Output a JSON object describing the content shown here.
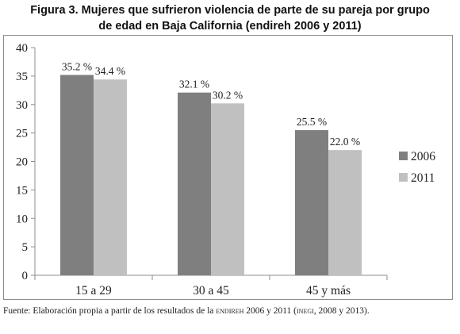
{
  "title": {
    "line1": "Figura 3. Mujeres que sufrieron violencia de parte de su pareja por grupo",
    "line2": "de edad en Baja California (endireh 2006 y 2011)"
  },
  "source": {
    "prefix": "Fuente: Elaboración propia a partir de los resultados de la ",
    "sc1": "endireh",
    "mid": " 2006 y 2011 (",
    "sc2": "inegi",
    "suffix": ", 2008 y 2013)."
  },
  "colors": {
    "s2006": "#7f7f7f",
    "s2011": "#c0c0c0",
    "axis": "#8c8c8c"
  },
  "chart_data": {
    "type": "bar",
    "categories": [
      "15 a 29",
      "30 a 45",
      "45 y más"
    ],
    "series": [
      {
        "name": "2006",
        "values": [
          35.2,
          32.1,
          25.5
        ],
        "labels": [
          "35.2 %",
          "32.1 %",
          "25.5 %"
        ],
        "color": "#7f7f7f"
      },
      {
        "name": "2011",
        "values": [
          34.4,
          30.2,
          22.0
        ],
        "labels": [
          "34.4 %",
          "30.2 %",
          "22.0 %"
        ],
        "color": "#c0c0c0"
      }
    ],
    "ylim": [
      0,
      40
    ],
    "yticks": [
      0,
      5,
      10,
      15,
      20,
      25,
      30,
      35,
      40
    ],
    "grid": false,
    "legend_position": "right"
  }
}
